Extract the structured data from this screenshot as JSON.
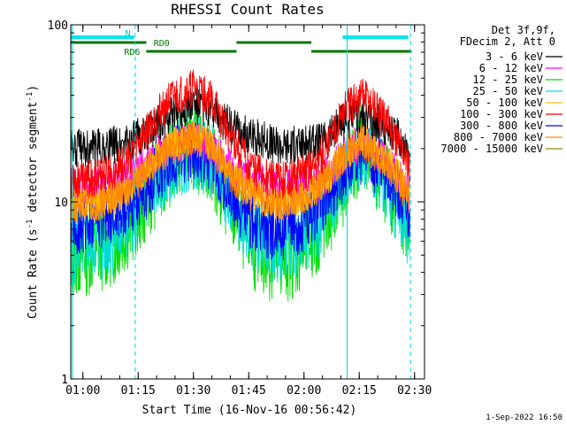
{
  "chart_data": {
    "type": "line",
    "title": "RHESSI Count Rates",
    "xlabel": "Start Time (16-Nov-16 00:56:42)",
    "ylabel": "Count Rate (s",
    "ylabel_sup1": "-1",
    "ylabel_mid": " detector segment",
    "ylabel_sup2": "-1",
    "ylabel_end": ")",
    "yscale": "log",
    "ylim": [
      1,
      100
    ],
    "x_units": "minutes since 00:56:42",
    "xlim": [
      0,
      96
    ],
    "y_ticks": [
      {
        "value": 1,
        "label": "1"
      },
      {
        "value": 10,
        "label": "10"
      },
      {
        "value": 100,
        "label": "100"
      }
    ],
    "x_ticks": [
      {
        "value": 3.3,
        "label": "01:00"
      },
      {
        "value": 18.3,
        "label": "01:15"
      },
      {
        "value": 33.3,
        "label": "01:30"
      },
      {
        "value": 48.3,
        "label": "01:45"
      },
      {
        "value": 63.3,
        "label": "02:00"
      },
      {
        "value": 78.3,
        "label": "02:15"
      },
      {
        "value": 93.3,
        "label": "02:30"
      }
    ],
    "legend": {
      "header": [
        "Det 3f,9f,",
        "FDecim 2, Att 0"
      ],
      "position": "right"
    },
    "series": [
      {
        "name": "3 - 6 keV",
        "color": "#000000",
        "values": [
          20,
          20,
          21,
          22,
          24,
          30,
          36,
          33,
          26,
          23,
          21,
          21,
          22,
          28,
          31,
          26,
          20
        ]
      },
      {
        "name": "6 - 12 keV",
        "color": "#ff00ff",
        "values": [
          12,
          12,
          13,
          14,
          16,
          20,
          23,
          20,
          15,
          13,
          12,
          12,
          13,
          18,
          22,
          17,
          11
        ]
      },
      {
        "name": "12 - 25 keV",
        "color": "#00dd00",
        "values": [
          5,
          5.3,
          6,
          7.5,
          10,
          16,
          21,
          17,
          9,
          5.5,
          4.6,
          5.2,
          7,
          13,
          20,
          13,
          6.5
        ]
      },
      {
        "name": "25 - 50 keV",
        "color": "#00dddd",
        "values": [
          5.5,
          5.8,
          6.5,
          8,
          10.5,
          16,
          20,
          17,
          10,
          6.5,
          5.8,
          6.2,
          8,
          14,
          20,
          13,
          6.8
        ]
      },
      {
        "name": "50 - 100 keV",
        "color": "#ffbb00",
        "values": [
          9.5,
          9.8,
          10.5,
          12,
          15,
          20,
          24,
          21,
          14,
          11,
          10,
          10.5,
          12.5,
          18,
          23,
          17,
          11
        ]
      },
      {
        "name": "100 - 300 keV",
        "color": "#ff0000",
        "values": [
          13,
          13.5,
          15,
          18,
          24,
          36,
          44,
          38,
          22,
          15,
          13,
          14,
          18,
          32,
          40,
          28,
          16
        ]
      },
      {
        "name": "300 - 800 keV",
        "color": "#0000ff",
        "values": [
          7.5,
          7.7,
          8.3,
          9.5,
          11.5,
          16.5,
          20,
          17,
          10.5,
          7.5,
          6.9,
          7.4,
          9.5,
          15,
          19,
          14,
          8.5
        ]
      },
      {
        "name": "800 - 7000 keV",
        "color": "#ff8800",
        "values": [
          9.5,
          9.7,
          10.5,
          12,
          14.5,
          19.5,
          23,
          20,
          13.5,
          10.5,
          9.8,
          10.3,
          12.5,
          18,
          22,
          16,
          10.5
        ]
      },
      {
        "name": "7000 - 15000 keV",
        "color": "#998800",
        "values": []
      }
    ],
    "series_x": [
      0,
      6,
      12,
      16,
      20,
      26,
      33,
      38,
      44,
      50,
      56,
      62,
      68,
      74,
      79,
      86,
      92
    ],
    "state_bars": {
      "cyan_segments": [
        [
          0,
          17.2
        ],
        [
          73.8,
          91.6
        ]
      ],
      "cyan_labels": [
        {
          "text": "N",
          "x": 17.2
        }
      ],
      "green_segments": [
        {
          "from": 0,
          "to": 20.5,
          "level": "upper"
        },
        {
          "from": 20.5,
          "to": 45.0,
          "level": "lower"
        },
        {
          "from": 45.0,
          "to": 65.3,
          "level": "upper"
        },
        {
          "from": 65.3,
          "to": 92.5,
          "level": "lower"
        }
      ],
      "green_labels": [
        {
          "text": "RD0",
          "x": 22.5,
          "level": "upper"
        },
        {
          "text": "RD6",
          "x": 14.5,
          "level": "lower"
        }
      ]
    },
    "vertical_markers": [
      {
        "x": 17.5,
        "style": "dashed"
      },
      {
        "x": 75.0,
        "style": "solid"
      },
      {
        "x": 92.2,
        "style": "dashed"
      }
    ],
    "solid_marker_x": 0.4
  },
  "footer": {
    "date_stamp": "1-Sep-2022 16:50"
  }
}
